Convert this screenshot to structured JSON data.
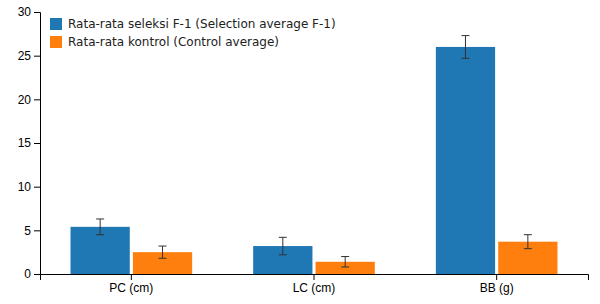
{
  "chart_data": {
    "type": "bar",
    "categories": [
      "PC (cm)",
      "LC (cm)",
      "BB (g)"
    ],
    "series": [
      {
        "name": "Rata-rata seleksi F-1 (Selection average F-1)",
        "values": [
          5.4,
          3.2,
          26.0
        ],
        "errors": [
          0.9,
          1.0,
          1.3
        ]
      },
      {
        "name": "Rata-rata kontrol (Control average)",
        "values": [
          2.5,
          1.4,
          3.7
        ],
        "errors": [
          0.7,
          0.6,
          0.8
        ]
      }
    ],
    "ylim": [
      0,
      30
    ],
    "yticks": [
      0,
      5,
      10,
      15,
      20,
      25,
      30
    ],
    "legend": "upper left",
    "grid": false
  }
}
